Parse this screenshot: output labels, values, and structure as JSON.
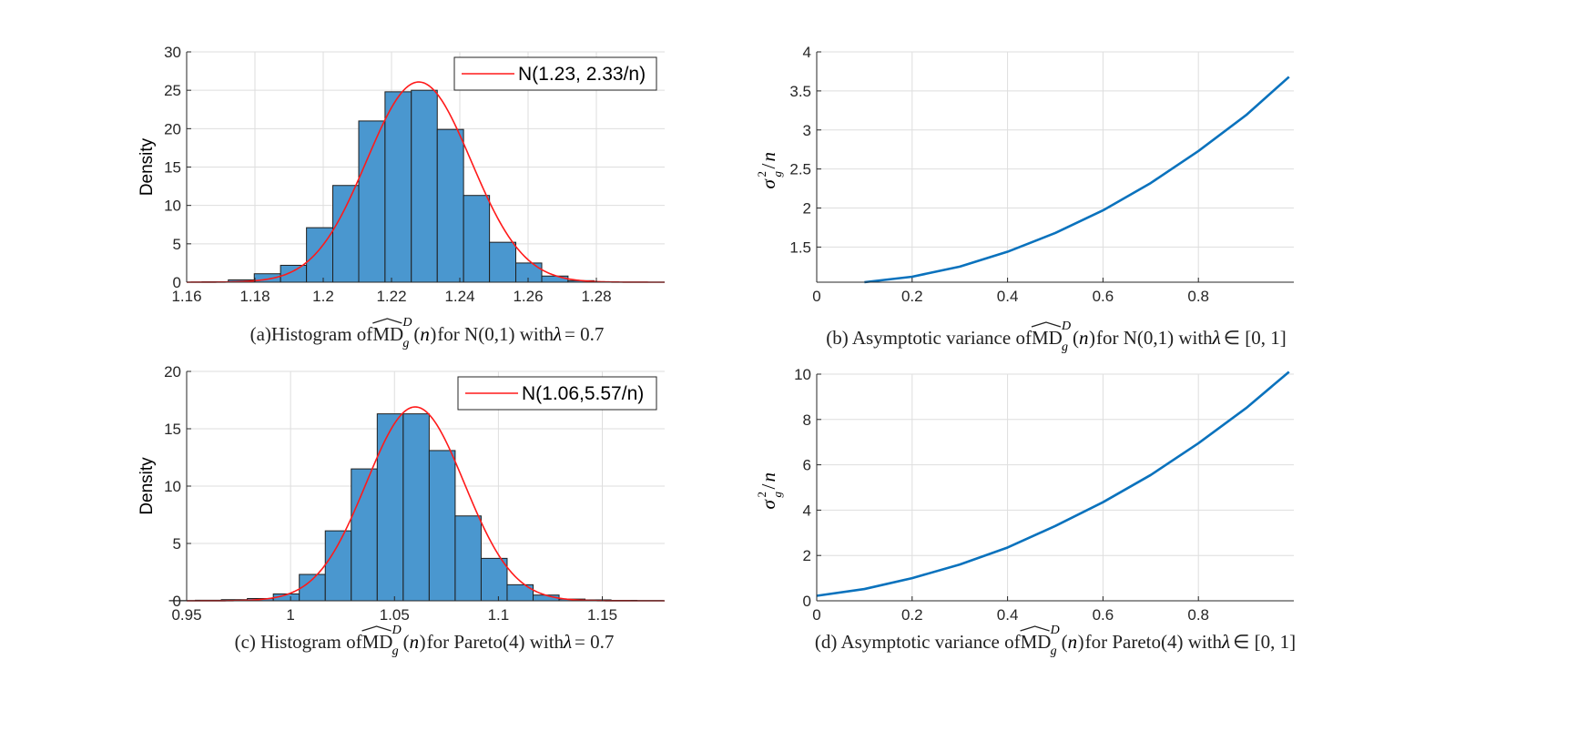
{
  "chart_data": [
    {
      "type": "bar",
      "subtype": "histogram",
      "ylabel": "Density",
      "xlim": [
        1.16,
        1.3
      ],
      "ylim": [
        0,
        30
      ],
      "xticks": [
        1.16,
        1.18,
        1.2,
        1.22,
        1.24,
        1.26,
        1.28
      ],
      "xtick_labels": [
        "1.16",
        "1.18",
        "1.2",
        "1.22",
        "1.24",
        "1.26",
        "1.28"
      ],
      "yticks": [
        0,
        5,
        10,
        15,
        20,
        25,
        30
      ],
      "ytick_labels": [
        "0",
        "5",
        "10",
        "15",
        "20",
        "25",
        "30"
      ],
      "bin_edges": [
        1.1645,
        1.1722,
        1.1798,
        1.1875,
        1.1951,
        1.2028,
        1.2104,
        1.2181,
        1.2258,
        1.2334,
        1.2411,
        1.2487,
        1.2564,
        1.264,
        1.2717,
        1.2793
      ],
      "values": [
        0.05,
        0.3,
        1.1,
        2.2,
        7.1,
        12.6,
        21.0,
        24.8,
        25.0,
        19.9,
        11.3,
        5.2,
        2.5,
        0.8,
        0.2
      ],
      "fit": {
        "mean": 1.228,
        "variance": 0.000234
      },
      "legend": "N(1.23, 2.33/n)",
      "legend_position": "top-right",
      "grid": true,
      "colors": {
        "bar": "#4a97cf",
        "bar_edge": "#1e1e1e",
        "fit": "#ff1a1a"
      },
      "caption": {
        "prefix": "(a)Histogram of ",
        "mid": " for N(0,1) with ",
        "cond_var": "λ",
        "cond_rest": " = 0.7"
      }
    },
    {
      "type": "line",
      "ylabel": "σ²g/n",
      "xlim": [
        0,
        1
      ],
      "ylim": [
        1.05,
        4
      ],
      "xticks": [
        0,
        0.2,
        0.4,
        0.6,
        0.8
      ],
      "xtick_labels": [
        "0",
        "0.2",
        "0.4",
        "0.6",
        "0.8"
      ],
      "yticks": [
        1.5,
        2,
        2.5,
        3,
        3.5,
        4
      ],
      "ytick_labels": [
        "1.5",
        "2",
        "2.5",
        "3",
        "3.5",
        "4"
      ],
      "x": [
        0.1,
        0.2,
        0.3,
        0.4,
        0.5,
        0.6,
        0.7,
        0.8,
        0.9,
        0.99
      ],
      "y": [
        1.05,
        1.12,
        1.25,
        1.44,
        1.68,
        1.97,
        2.32,
        2.73,
        3.19,
        3.68
      ],
      "grid": true,
      "colors": {
        "line": "#0a72bd"
      },
      "caption": {
        "prefix": "(b) Asymptotic variance of ",
        "mid": " for N(0,1) with ",
        "cond_var": "λ",
        "cond_rest": " ∈ [0, 1]"
      }
    },
    {
      "type": "bar",
      "subtype": "histogram",
      "ylabel": "Density",
      "xlim": [
        0.95,
        1.18
      ],
      "ylim": [
        0,
        20
      ],
      "xticks": [
        0.95,
        1,
        1.05,
        1.1,
        1.15
      ],
      "xtick_labels": [
        "0.95",
        "1",
        "1.05",
        "1.1",
        "1.15"
      ],
      "yticks": [
        0,
        5,
        10,
        15,
        20
      ],
      "ytick_labels": [
        "0",
        "5",
        "10",
        "15",
        "20"
      ],
      "bin_edges": [
        0.9417,
        0.9542,
        0.9667,
        0.9792,
        0.9917,
        1.0042,
        1.0167,
        1.0292,
        1.0417,
        1.0542,
        1.0667,
        1.0792,
        1.0917,
        1.1042,
        1.1167,
        1.1292,
        1.1417,
        1.1542,
        1.1667,
        1.1792
      ],
      "values": [
        0.02,
        0.05,
        0.1,
        0.2,
        0.6,
        2.3,
        6.1,
        11.5,
        16.3,
        16.3,
        13.1,
        7.4,
        3.7,
        1.4,
        0.5,
        0.15,
        0.08,
        0.04,
        0.02
      ],
      "fit": {
        "mean": 1.06,
        "variance": 0.000557
      },
      "legend": "N(1.06,5.57/n)",
      "legend_position": "top-right",
      "grid": true,
      "colors": {
        "bar": "#4a97cf",
        "bar_edge": "#1e1e1e",
        "fit": "#ff1a1a"
      },
      "caption": {
        "prefix": "(c) Histogram of ",
        "mid": " for Pareto(4) with ",
        "cond_var": "λ",
        "cond_rest": " = 0.7"
      }
    },
    {
      "type": "line",
      "ylabel": "σ²g/n",
      "xlim": [
        0,
        1
      ],
      "ylim": [
        0,
        10
      ],
      "xticks": [
        0,
        0.2,
        0.4,
        0.6,
        0.8
      ],
      "xtick_labels": [
        "0",
        "0.2",
        "0.4",
        "0.6",
        "0.8"
      ],
      "yticks": [
        0,
        2,
        4,
        6,
        8,
        10
      ],
      "ytick_labels": [
        "0",
        "2",
        "4",
        "6",
        "8",
        "10"
      ],
      "x": [
        0,
        0.1,
        0.2,
        0.3,
        0.4,
        0.5,
        0.6,
        0.7,
        0.8,
        0.9,
        0.99
      ],
      "y": [
        0.22,
        0.52,
        1.0,
        1.6,
        2.35,
        3.3,
        4.35,
        5.55,
        6.95,
        8.5,
        10.1
      ],
      "grid": true,
      "colors": {
        "line": "#0a72bd"
      },
      "caption": {
        "prefix": "(d) Asymptotic variance of ",
        "mid": " for Pareto(4) with ",
        "cond_var": "λ",
        "cond_rest": " ∈ [0, 1]"
      }
    }
  ]
}
